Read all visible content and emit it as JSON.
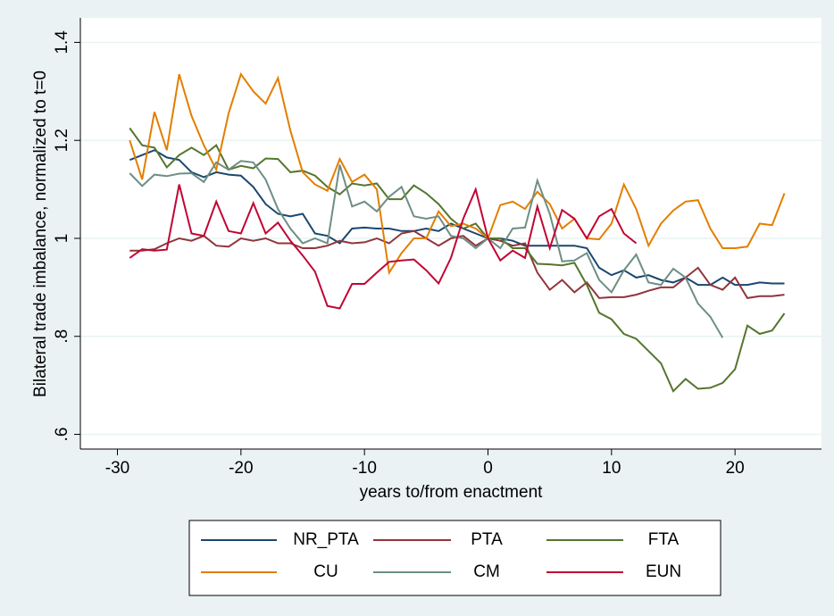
{
  "chart_data": {
    "type": "line",
    "x_label": "years to/from enactment",
    "y_label": "Bilateral trade imbalance, normalized to t=0",
    "x": [
      -29,
      -28,
      -27,
      -26,
      -25,
      -24,
      -23,
      -22,
      -21,
      -20,
      -19,
      -18,
      -17,
      -16,
      -15,
      -14,
      -13,
      -12,
      -11,
      -10,
      -9,
      -8,
      -7,
      -6,
      -5,
      -4,
      -3,
      -2,
      -1,
      0,
      1,
      2,
      3,
      4,
      5,
      6,
      7,
      8,
      9,
      10,
      11,
      12,
      13,
      14,
      15,
      16,
      17,
      18,
      19,
      20,
      21,
      22,
      23,
      24
    ],
    "series": [
      {
        "name": "NR_PTA",
        "color": "#1a476f",
        "values": [
          1.16,
          1.17,
          1.18,
          1.165,
          1.16,
          1.135,
          1.125,
          1.135,
          1.13,
          1.128,
          1.105,
          1.07,
          1.05,
          1.045,
          1.05,
          1.01,
          1.005,
          0.99,
          1.02,
          1.022,
          1.02,
          1.02,
          1.015,
          1.015,
          1.02,
          1.015,
          1.03,
          1.02,
          1.01,
          1.0,
          1.0,
          0.995,
          0.985,
          0.985,
          0.985,
          0.985,
          0.985,
          0.98,
          0.94,
          0.925,
          0.935,
          0.92,
          0.925,
          0.915,
          0.91,
          0.92,
          0.905,
          0.905,
          0.92,
          0.905,
          0.905,
          0.91,
          0.908,
          0.908
        ]
      },
      {
        "name": "PTA",
        "color": "#90353b",
        "values": [
          0.975,
          0.975,
          0.978,
          0.99,
          1.0,
          0.995,
          1.005,
          0.985,
          0.983,
          1.0,
          0.995,
          1.0,
          0.99,
          0.99,
          0.98,
          0.98,
          0.985,
          0.995,
          0.99,
          0.992,
          1.0,
          0.99,
          1.01,
          1.015,
          1.0,
          0.985,
          1.0,
          1.005,
          0.985,
          1.0,
          0.995,
          0.985,
          0.99,
          0.93,
          0.895,
          0.915,
          0.89,
          0.91,
          0.878,
          0.88,
          0.88,
          0.885,
          0.893,
          0.9,
          0.9,
          0.92,
          0.94,
          0.905,
          0.895,
          0.92,
          0.878,
          0.882,
          0.882,
          0.885
        ]
      },
      {
        "name": "FTA",
        "color": "#55752f",
        "values": [
          1.225,
          1.19,
          1.185,
          1.145,
          1.17,
          1.185,
          1.17,
          1.19,
          1.14,
          1.148,
          1.143,
          1.163,
          1.162,
          1.135,
          1.138,
          1.128,
          1.105,
          1.09,
          1.112,
          1.108,
          1.112,
          1.08,
          1.08,
          1.108,
          1.092,
          1.07,
          1.04,
          1.02,
          1.03,
          1.0,
          1.0,
          0.98,
          0.98,
          0.948,
          0.947,
          0.945,
          0.95,
          0.905,
          0.848,
          0.835,
          0.805,
          0.795,
          0.77,
          0.745,
          0.688,
          0.713,
          0.693,
          0.695,
          0.705,
          0.733,
          0.822,
          0.805,
          0.812,
          0.847
        ]
      },
      {
        "name": "CU",
        "color": "#e37e00",
        "values": [
          1.2,
          1.12,
          1.258,
          1.18,
          1.335,
          1.25,
          1.19,
          1.14,
          1.255,
          1.335,
          1.3,
          1.275,
          1.327,
          1.22,
          1.135,
          1.11,
          1.097,
          1.162,
          1.115,
          1.13,
          1.1,
          0.93,
          0.97,
          1.0,
          1.0,
          1.055,
          1.025,
          1.03,
          1.02,
          1.0,
          1.068,
          1.075,
          1.06,
          1.095,
          1.07,
          1.02,
          1.04,
          1.0,
          0.998,
          1.03,
          1.11,
          1.06,
          0.985,
          1.03,
          1.057,
          1.075,
          1.078,
          1.02,
          0.98,
          0.98,
          0.983,
          1.03,
          1.027,
          1.092
        ]
      },
      {
        "name": "CM",
        "color": "#6e8e84",
        "values": [
          1.133,
          1.107,
          1.13,
          1.127,
          1.132,
          1.133,
          1.115,
          1.155,
          1.14,
          1.158,
          1.155,
          1.12,
          1.06,
          1.02,
          0.99,
          1.0,
          0.99,
          1.15,
          1.065,
          1.075,
          1.055,
          1.085,
          1.105,
          1.045,
          1.04,
          1.045,
          1.005,
          1.0,
          0.98,
          1.0,
          0.98,
          1.02,
          1.022,
          1.118,
          1.05,
          0.953,
          0.955,
          0.97,
          0.915,
          0.89,
          0.935,
          0.967,
          0.91,
          0.905,
          0.938,
          0.92,
          0.867,
          0.84,
          0.797,
          null,
          null,
          null,
          null,
          null
        ]
      },
      {
        "name": "EUN",
        "color": "#c10534",
        "values": [
          0.96,
          0.978,
          0.975,
          0.977,
          1.11,
          1.01,
          1.005,
          1.075,
          1.015,
          1.01,
          1.072,
          1.01,
          1.032,
          0.995,
          0.965,
          0.932,
          0.862,
          0.857,
          0.907,
          0.907,
          0.93,
          0.952,
          0.955,
          0.957,
          0.935,
          0.908,
          0.96,
          1.04,
          1.1,
          1.0,
          0.955,
          0.975,
          0.96,
          1.065,
          0.98,
          1.058,
          1.04,
          1.0,
          1.045,
          1.06,
          1.01,
          0.99,
          null,
          null,
          null,
          null,
          null,
          null,
          null,
          null,
          null,
          null,
          null,
          null
        ]
      }
    ],
    "xlim": [
      -33,
      27
    ],
    "xticks": [
      -30,
      -20,
      -10,
      0,
      10,
      20
    ],
    "ylim": [
      0.57,
      1.45
    ],
    "yticks": [
      {
        "value": 0.6,
        "label": ".6"
      },
      {
        "value": 0.8,
        "label": ".8"
      },
      1,
      1.2,
      1.4
    ],
    "grid": true,
    "legend": "bottom"
  }
}
